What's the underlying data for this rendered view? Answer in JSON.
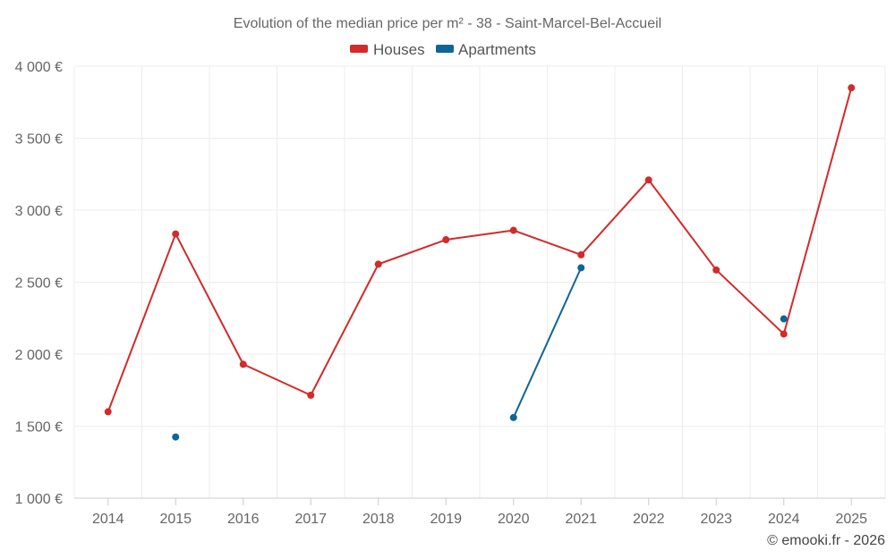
{
  "chart_data": {
    "type": "line",
    "title": "Evolution of the median price per m² - 38 - Saint-Marcel-Bel-Accueil",
    "categories": [
      "2014",
      "2015",
      "2016",
      "2017",
      "2018",
      "2019",
      "2020",
      "2021",
      "2022",
      "2023",
      "2024",
      "2025"
    ],
    "ylim": [
      1000,
      4000
    ],
    "y_ticks": [
      1000,
      1500,
      2000,
      2500,
      3000,
      3500,
      4000
    ],
    "y_tick_labels": [
      "1 000 €",
      "1 500 €",
      "2 000 €",
      "2 500 €",
      "3 000 €",
      "3 500 €",
      "4 000 €"
    ],
    "grid": true,
    "legend_position": "top-center",
    "series": [
      {
        "name": "Houses",
        "color": "#d32a2a",
        "values": [
          1600,
          2835,
          1930,
          1715,
          2625,
          2795,
          2860,
          2690,
          3210,
          2585,
          2140,
          3850
        ]
      },
      {
        "name": "Apartments",
        "color": "#0f6694",
        "values": [
          null,
          1425,
          null,
          null,
          null,
          null,
          1560,
          2600,
          null,
          null,
          2245,
          null
        ]
      }
    ]
  },
  "credit": "© emooki.fr - 2026"
}
